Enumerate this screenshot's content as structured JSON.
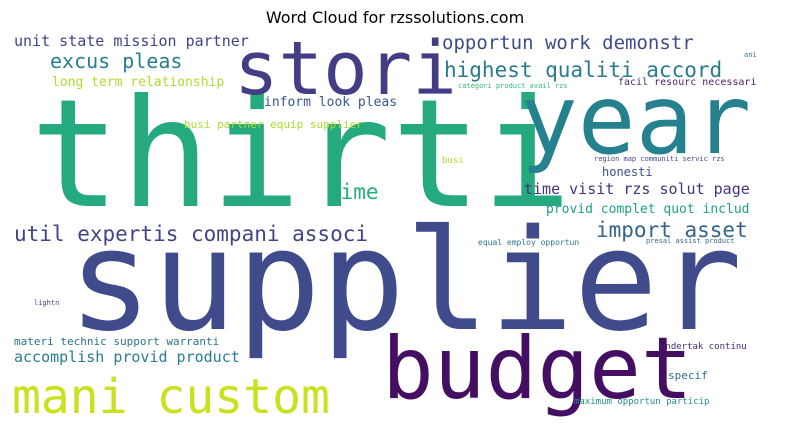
{
  "title": "Word Cloud for rzssolutions.com",
  "words": [
    {
      "text": "thirti",
      "color": "#25a97e"
    },
    {
      "text": "supplier",
      "color": "#3f4b8b"
    },
    {
      "text": "year",
      "color": "#26818e"
    },
    {
      "text": "stori",
      "color": "#433d85"
    },
    {
      "text": "budget",
      "color": "#440f63"
    },
    {
      "text": "mani custom",
      "color": "#cae11f"
    },
    {
      "text": "util expertis compani associ",
      "color": "#414487"
    },
    {
      "text": "import asset",
      "color": "#32648e"
    },
    {
      "text": "highest qualiti accord",
      "color": "#2a7b8e"
    },
    {
      "text": "opportun work demonstr",
      "color": "#3d4d8a"
    },
    {
      "text": "excus pleas",
      "color": "#277e8e"
    },
    {
      "text": "time",
      "color": "#27ad81"
    },
    {
      "text": "time visit rzs solut page",
      "color": "#46327e"
    },
    {
      "text": "unit state mission partner",
      "color": "#404588"
    },
    {
      "text": "long term relationship",
      "color": "#addc30"
    },
    {
      "text": "inform look pleas",
      "color": "#38588c"
    },
    {
      "text": "busi partner equip supplier",
      "color": "#addc30"
    },
    {
      "text": "honesti",
      "color": "#3b518b"
    },
    {
      "text": "provid complet quot includ",
      "color": "#1fa187"
    },
    {
      "text": "accomplish provid product",
      "color": "#287d8e"
    },
    {
      "text": "materi technic support warranti",
      "color": "#2c728e"
    },
    {
      "text": "facil resourc necessari",
      "color": "#481f70"
    },
    {
      "text": "categori product avail rzs",
      "color": "#35b779"
    },
    {
      "text": "region map communiti servic rzs",
      "color": "#3e4a89"
    },
    {
      "text": "equal employ opportun",
      "color": "#2a788e"
    },
    {
      "text": "presal assist product",
      "color": "#31688e"
    },
    {
      "text": "undertak continu",
      "color": "#482878"
    },
    {
      "text": "specif",
      "color": "#2c728e"
    },
    {
      "text": "maximum opportun particip",
      "color": "#21918c"
    },
    {
      "text": "busi",
      "color": "#addc30"
    },
    {
      "text": "ani",
      "color": "#277f8e"
    },
    {
      "text": "lightn",
      "color": "#414487"
    }
  ]
}
